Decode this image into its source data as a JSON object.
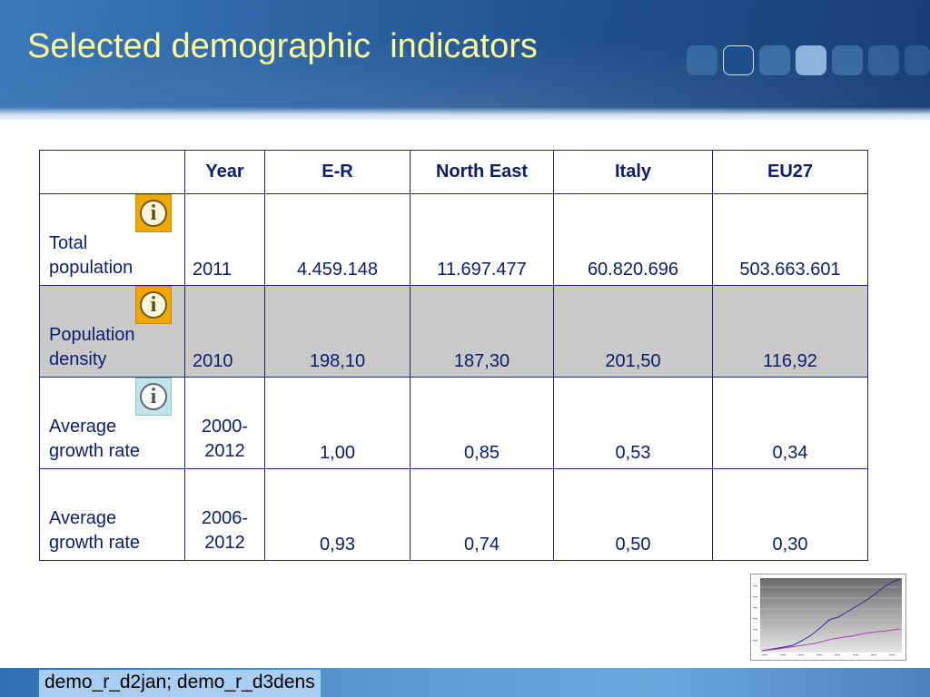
{
  "slide": {
    "title": "Selected demographic  indicators"
  },
  "table": {
    "headers": [
      "",
      "Year",
      "E-R",
      "North East",
      "Italy",
      "EU27"
    ],
    "rows": [
      {
        "label_line1": "Total",
        "label_line2": "population",
        "year": "2011",
        "values": [
          "4.459.148",
          "11.697.477",
          "60.820.696",
          "503.663.601"
        ],
        "info_icon": "info-icon",
        "shaded": false
      },
      {
        "label_line1": "Population",
        "label_line2": "density",
        "year": "2010",
        "values": [
          "198,10",
          "187,30",
          "201,50",
          "116,92"
        ],
        "info_icon": "info-icon",
        "shaded": true
      },
      {
        "label_line1": "Average",
        "label_line2": "growth rate",
        "year_line1": "2000-",
        "year_line2": "2012",
        "values": [
          "1,00",
          "0,85",
          "0,53",
          "0,34"
        ],
        "info_icon": "info-icon",
        "shaded": false
      },
      {
        "label_line1": "Average",
        "label_line2": "growth rate",
        "year_line1": "2006-",
        "year_line2": "2012",
        "values": [
          "0,93",
          "0,74",
          "0,50",
          "0,30"
        ],
        "shaded": false
      }
    ]
  },
  "footer": {
    "source_text": "demo_r_d2jan; demo_r_d3dens"
  },
  "colors": {
    "title": "#ffff99",
    "table_text": "#0a1c6e",
    "table_border": "#1a237e",
    "shaded_row": "#c9c9c9",
    "info_icon_bg": "#f0a800",
    "info_icon_light_bg": "#bfe3e6",
    "footer_label_bg": "#a8cdf0"
  }
}
